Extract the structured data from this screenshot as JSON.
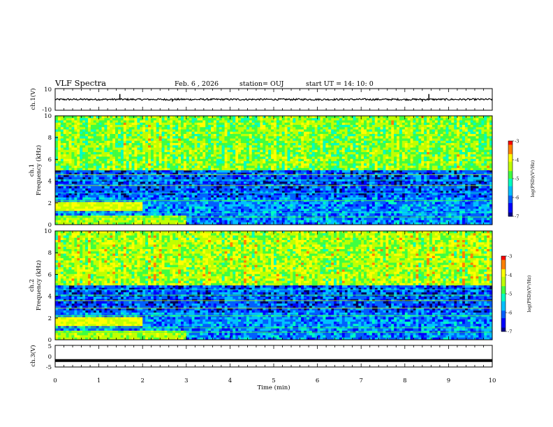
{
  "header": {
    "title": "VLF Spectra",
    "date": "Feb. 6 , 2026",
    "station": "station= OUJ",
    "start": "start UT =  14: 10: 0"
  },
  "colors": {
    "spectrum_scale": [
      "#00008b",
      "#0000ff",
      "#0060ff",
      "#00c0ff",
      "#00ffc0",
      "#40ff40",
      "#c0ff00",
      "#ffff00",
      "#ff8000",
      "#ff0000"
    ],
    "trace": "#000000"
  },
  "chart_data": [
    {
      "type": "line",
      "name": "ch1-waveform",
      "ylabel": "ch.1(V)",
      "ylim": [
        -10,
        10
      ],
      "yticks": [
        "10",
        "-10"
      ],
      "baseline": 0,
      "spikes": [
        {
          "t": 1.48,
          "v": 5
        },
        {
          "t": 2.68,
          "v": -2
        },
        {
          "t": 8.55,
          "v": 5
        },
        {
          "t": 8.4,
          "v": -2
        }
      ]
    },
    {
      "type": "heatmap",
      "name": "ch1-spectrogram",
      "ylabel_top": "ch.1",
      "ylabel": "Frequency  (kHz)",
      "ylim": [
        0,
        10
      ],
      "yticks": [
        "0",
        "2",
        "4",
        "6",
        "8",
        "10"
      ],
      "colorbar": {
        "label": "log(PSD)(V²/Hz)",
        "range": [
          -7,
          -3
        ],
        "ticks": [
          "-3",
          "-4",
          "-5",
          "-6",
          "-7"
        ]
      }
    },
    {
      "type": "heatmap",
      "name": "ch2-spectrogram",
      "ylabel_top": "ch.2",
      "ylabel": "Frequency  (kHz)",
      "ylim": [
        0,
        10
      ],
      "yticks": [
        "0",
        "2",
        "4",
        "6",
        "8",
        "10"
      ],
      "colorbar": {
        "label": "log(PSD)(V²/Hz)",
        "range": [
          -7,
          -3
        ],
        "ticks": [
          "-3",
          "-4",
          "-5",
          "-6",
          "-7"
        ]
      }
    },
    {
      "type": "line",
      "name": "ch3-waveform",
      "ylabel": "ch.3(V)",
      "ylim": [
        -5,
        5
      ],
      "yticks": [
        "5",
        "0",
        "-5"
      ],
      "constant": -2
    }
  ],
  "xaxis": {
    "label": "Time  (min)",
    "range": [
      0,
      10
    ],
    "ticks": [
      "0",
      "1",
      "2",
      "3",
      "4",
      "5",
      "6",
      "7",
      "8",
      "9",
      "10"
    ]
  }
}
